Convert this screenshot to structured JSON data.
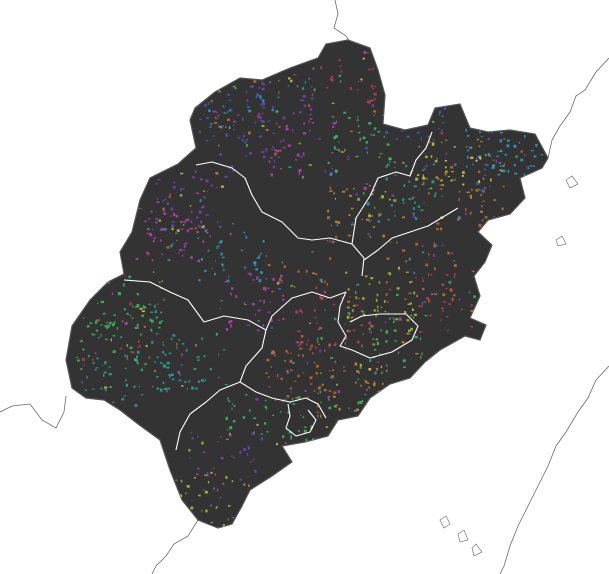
{
  "map": {
    "region": "",
    "palette": {
      "background": "#ffffff",
      "province_fill": "#333333",
      "boundary": "#ffffff",
      "coast": "#6a6a6a",
      "basin_colors": [
        "#7a3fb8",
        "#3b5fc4",
        "#c2385a",
        "#3fbf5a",
        "#2aa39a",
        "#c96a2e",
        "#a8c832",
        "#c23ec4",
        "#d08a2a",
        "#2f9fd0",
        "#e0cf3a"
      ]
    },
    "layers": [
      "coastline",
      "province-outline",
      "prefecture-boundaries",
      "river-basin-texture"
    ]
  }
}
